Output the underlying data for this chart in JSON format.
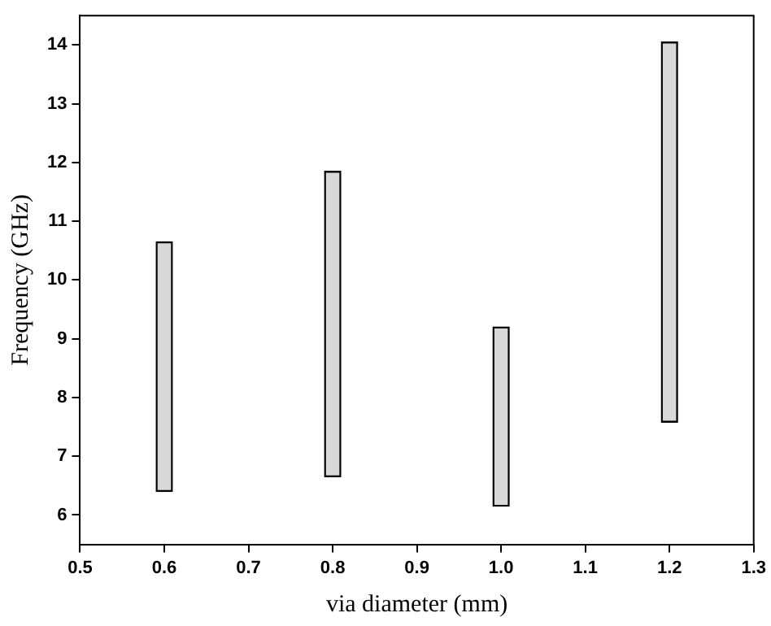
{
  "chart_data": {
    "type": "bar",
    "xlabel": "via diameter (mm)",
    "ylabel": "Frequency (GHz)",
    "x": [
      0.6,
      0.8,
      1.0,
      1.2
    ],
    "base": [
      6.4,
      6.65,
      6.15,
      7.58
    ],
    "values": [
      4.25,
      5.2,
      3.05,
      6.47
    ],
    "color": "#d9d9d9",
    "xlim": [
      0.5,
      1.3
    ],
    "xticks": [
      0.5,
      0.6,
      0.7,
      0.8,
      0.9,
      {
        "value": 1,
        "label": "1.0"
      },
      1.1,
      1.2,
      1.3
    ],
    "ylim": [
      5.5,
      14.5
    ],
    "yticks": [
      6,
      7,
      8,
      9,
      10,
      11,
      12,
      13,
      14
    ],
    "grid": false,
    "legend": false
  }
}
